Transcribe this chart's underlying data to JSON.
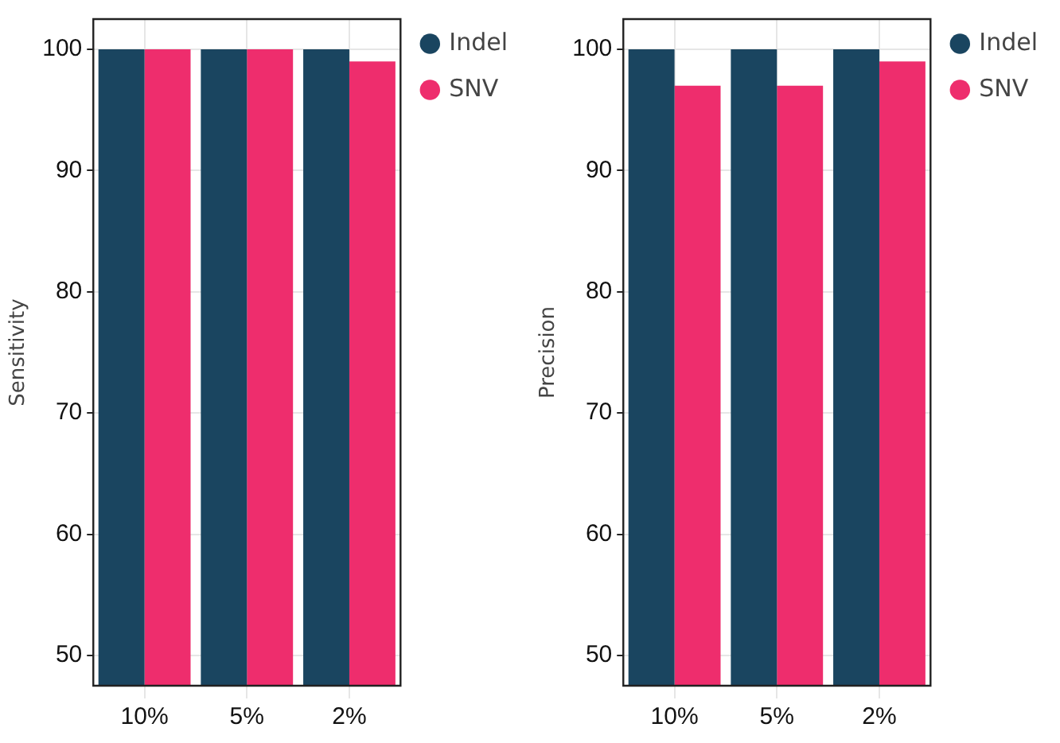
{
  "chart_data": [
    {
      "type": "bar",
      "ylabel": "Sensitivity",
      "categories": [
        "10%",
        "5%",
        "2%"
      ],
      "series": [
        {
          "name": "Indel",
          "color": "#1a4560",
          "values": [
            100,
            100,
            100
          ]
        },
        {
          "name": "SNV",
          "color": "#ee2d6d",
          "values": [
            100,
            100,
            99
          ]
        }
      ],
      "ylim": [
        47.5,
        102.5
      ],
      "yticks": [
        50,
        60,
        70,
        80,
        90,
        100
      ],
      "grid": true,
      "legend": "right"
    },
    {
      "type": "bar",
      "ylabel": "Precision",
      "categories": [
        "10%",
        "5%",
        "2%"
      ],
      "series": [
        {
          "name": "Indel",
          "color": "#1a4560",
          "values": [
            100,
            100,
            100
          ]
        },
        {
          "name": "SNV",
          "color": "#ee2d6d",
          "values": [
            97,
            97,
            99
          ]
        }
      ],
      "ylim": [
        47.5,
        102.5
      ],
      "yticks": [
        50,
        60,
        70,
        80,
        90,
        100
      ],
      "grid": true,
      "legend": "right"
    }
  ]
}
